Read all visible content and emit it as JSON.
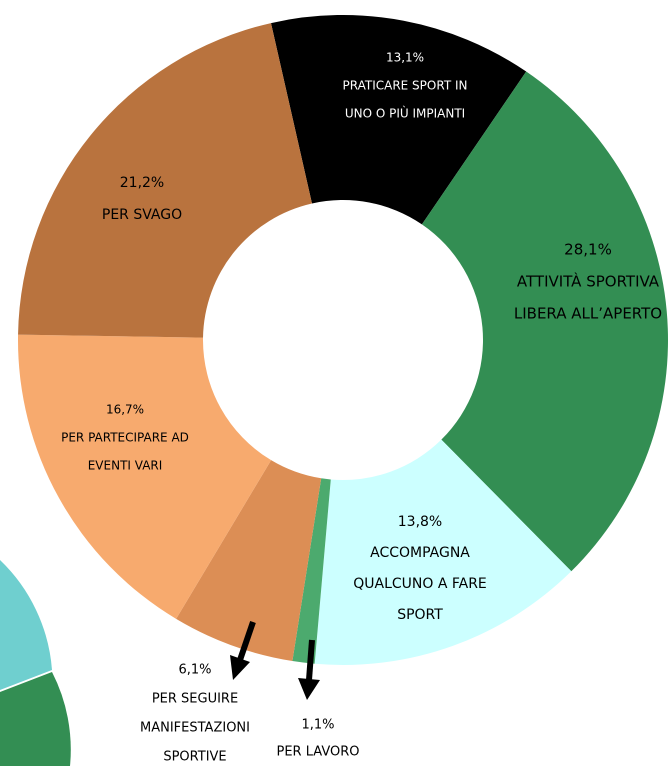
{
  "chart_data": {
    "type": "donut",
    "categories": [
      [
        "PRATICARE SPORT IN",
        "UNO O PIÙ IMPIANTI"
      ],
      [
        "ATTIVITÀ SPORTIVA",
        "LIBERA ALL’APERTO"
      ],
      [
        "ACCOMPAGNA",
        "QUALCUNO A FARE",
        "SPORT"
      ],
      [
        "PER LAVORO"
      ],
      [
        "PER SEGUIRE",
        "MANIFESTAZIONI",
        "SPORTIVE"
      ],
      [
        "PER PARTECIPARE AD",
        "EVENTI VARI"
      ],
      [
        "PER SVAGO"
      ]
    ],
    "values": [
      13.1,
      28.1,
      13.8,
      1.1,
      6.1,
      16.7,
      21.2
    ],
    "value_labels": [
      "13,1%",
      "28,1%",
      "13,8%",
      "1,1%",
      "6,1%",
      "16,7%",
      "21,2%"
    ],
    "colors": [
      "#000000",
      "#338e53",
      "#ccffff",
      "#4caa6e",
      "#dc8e55",
      "#f7aa6e",
      "#b9733e"
    ]
  }
}
